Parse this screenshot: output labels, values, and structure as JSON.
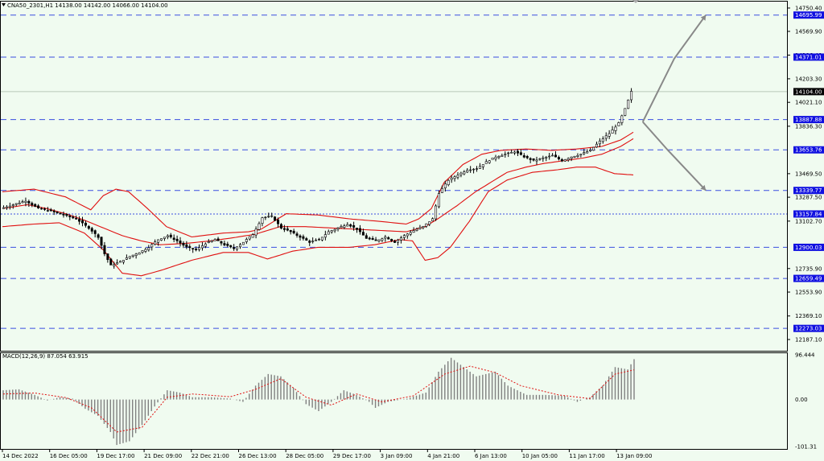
{
  "header": {
    "title": "CNA50_2301,H1  14138.00 14142.00 14066.00 14104.00"
  },
  "colors": {
    "background": "#f0fbf0",
    "level_line": "#3a4ee0",
    "bollinger": "#e01010",
    "ma": "#c00000",
    "candle": "#000000",
    "projection": "#888888",
    "macd_hist": "#808080",
    "macd_signal": "#e01010",
    "label_bg": "#1010e0"
  },
  "chart_data": [
    {
      "type": "candlestick",
      "title": "CNA50_2301,H1",
      "ohlc_header": {
        "open": 14138.0,
        "high": 14142.0,
        "low": 14066.0,
        "close": 14104.0
      },
      "ylim": [
        12100,
        14800
      ],
      "y_ticks": [
        "14750.40",
        "14569.90",
        "14386.40",
        "14203.30",
        "14021.10",
        "13836.30",
        "13469.50",
        "13287.50",
        "13102.70",
        "12735.90",
        "12553.90",
        "12369.10",
        "12187.10"
      ],
      "x_ticks": [
        "14 Dec 2022",
        "16 Dec 05:00",
        "19 Dec 17:00",
        "21 Dec 09:00",
        "22 Dec 21:00",
        "26 Dec 13:00",
        "28 Dec 05:00",
        "29 Dec 17:00",
        "3 Jan 09:00",
        "4 Jan 21:00",
        "6 Jan 13:00",
        "10 Jan 05:00",
        "11 Jan 17:00",
        "13 Jan 09:00"
      ],
      "levels": [
        {
          "value": 14695.99,
          "label": "14695.99",
          "style": "dashed"
        },
        {
          "value": 14371.01,
          "label": "14371.01",
          "style": "dashed"
        },
        {
          "value": 14104.0,
          "label": "14104.00",
          "style": "last-price"
        },
        {
          "value": 13887.88,
          "label": "13887.88",
          "style": "dashed"
        },
        {
          "value": 13653.76,
          "label": "13653.76",
          "style": "dashed"
        },
        {
          "value": 13339.77,
          "label": "13339.77",
          "style": "dashed"
        },
        {
          "value": 13157.84,
          "label": "13157.84",
          "style": "dotted"
        },
        {
          "value": 12900.03,
          "label": "12900.03",
          "style": "dashed"
        },
        {
          "value": 12659.49,
          "label": "12659.49",
          "style": "dashed"
        },
        {
          "value": 12273.03,
          "label": "12273.03",
          "style": "dashed"
        }
      ],
      "price_path": [
        [
          0,
          13200
        ],
        [
          4,
          13230
        ],
        [
          8,
          13260
        ],
        [
          12,
          13200
        ],
        [
          16,
          13180
        ],
        [
          20,
          13150
        ],
        [
          24,
          13120
        ],
        [
          28,
          13050
        ],
        [
          31,
          12980
        ],
        [
          33,
          12850
        ],
        [
          35,
          12760
        ],
        [
          38,
          12790
        ],
        [
          41,
          12830
        ],
        [
          44,
          12860
        ],
        [
          47,
          12900
        ],
        [
          50,
          12960
        ],
        [
          53,
          12990
        ],
        [
          56,
          12950
        ],
        [
          59,
          12900
        ],
        [
          62,
          12880
        ],
        [
          65,
          12930
        ],
        [
          68,
          12960
        ],
        [
          71,
          12920
        ],
        [
          74,
          12890
        ],
        [
          77,
          12940
        ],
        [
          80,
          13000
        ],
        [
          83,
          13130
        ],
        [
          86,
          13140
        ],
        [
          89,
          13050
        ],
        [
          92,
          13020
        ],
        [
          95,
          12980
        ],
        [
          98,
          12940
        ],
        [
          101,
          12960
        ],
        [
          104,
          13020
        ],
        [
          107,
          13050
        ],
        [
          110,
          13080
        ],
        [
          113,
          13040
        ],
        [
          116,
          12970
        ],
        [
          119,
          12950
        ],
        [
          122,
          12980
        ],
        [
          125,
          12940
        ],
        [
          128,
          12990
        ],
        [
          131,
          13030
        ],
        [
          134,
          13060
        ],
        [
          137,
          13120
        ],
        [
          139,
          13320
        ],
        [
          142,
          13420
        ],
        [
          145,
          13460
        ],
        [
          148,
          13500
        ],
        [
          151,
          13510
        ],
        [
          154,
          13560
        ],
        [
          157,
          13600
        ],
        [
          160,
          13620
        ],
        [
          163,
          13640
        ],
        [
          166,
          13600
        ],
        [
          169,
          13570
        ],
        [
          172,
          13590
        ],
        [
          175,
          13610
        ],
        [
          178,
          13570
        ],
        [
          181,
          13600
        ],
        [
          184,
          13620
        ],
        [
          187,
          13650
        ],
        [
          190,
          13720
        ],
        [
          193,
          13780
        ],
        [
          196,
          13860
        ],
        [
          198,
          13970
        ],
        [
          200,
          14104
        ]
      ],
      "bollinger": {
        "upper": [
          [
            0,
            13330
          ],
          [
            10,
            13350
          ],
          [
            20,
            13290
          ],
          [
            28,
            13190
          ],
          [
            32,
            13300
          ],
          [
            36,
            13350
          ],
          [
            40,
            13330
          ],
          [
            46,
            13200
          ],
          [
            52,
            13060
          ],
          [
            60,
            12980
          ],
          [
            70,
            13010
          ],
          [
            78,
            13020
          ],
          [
            82,
            13040
          ],
          [
            90,
            13160
          ],
          [
            100,
            13150
          ],
          [
            110,
            13120
          ],
          [
            120,
            13100
          ],
          [
            128,
            13080
          ],
          [
            132,
            13120
          ],
          [
            136,
            13200
          ],
          [
            140,
            13400
          ],
          [
            146,
            13540
          ],
          [
            152,
            13620
          ],
          [
            158,
            13650
          ],
          [
            166,
            13660
          ],
          [
            174,
            13650
          ],
          [
            182,
            13660
          ],
          [
            190,
            13680
          ],
          [
            196,
            13730
          ],
          [
            200,
            13790
          ]
        ],
        "middle": [
          [
            0,
            13200
          ],
          [
            8,
            13230
          ],
          [
            14,
            13200
          ],
          [
            20,
            13160
          ],
          [
            26,
            13110
          ],
          [
            32,
            13050
          ],
          [
            38,
            12990
          ],
          [
            44,
            12950
          ],
          [
            50,
            12920
          ],
          [
            58,
            12930
          ],
          [
            66,
            12950
          ],
          [
            72,
            12970
          ],
          [
            80,
            13000
          ],
          [
            88,
            13060
          ],
          [
            96,
            13060
          ],
          [
            104,
            13050
          ],
          [
            112,
            13040
          ],
          [
            120,
            13030
          ],
          [
            128,
            13020
          ],
          [
            134,
            13060
          ],
          [
            138,
            13120
          ],
          [
            144,
            13220
          ],
          [
            150,
            13330
          ],
          [
            156,
            13420
          ],
          [
            160,
            13480
          ],
          [
            166,
            13520
          ],
          [
            172,
            13550
          ],
          [
            178,
            13570
          ],
          [
            184,
            13590
          ],
          [
            190,
            13620
          ],
          [
            196,
            13680
          ],
          [
            200,
            13740
          ]
        ],
        "lower": [
          [
            0,
            13060
          ],
          [
            10,
            13080
          ],
          [
            18,
            13090
          ],
          [
            26,
            13010
          ],
          [
            32,
            12880
          ],
          [
            38,
            12700
          ],
          [
            44,
            12680
          ],
          [
            50,
            12720
          ],
          [
            60,
            12800
          ],
          [
            70,
            12860
          ],
          [
            78,
            12860
          ],
          [
            84,
            12810
          ],
          [
            92,
            12870
          ],
          [
            100,
            12900
          ],
          [
            110,
            12900
          ],
          [
            118,
            12920
          ],
          [
            126,
            12960
          ],
          [
            130,
            12950
          ],
          [
            134,
            12800
          ],
          [
            138,
            12820
          ],
          [
            142,
            12900
          ],
          [
            148,
            13100
          ],
          [
            154,
            13330
          ],
          [
            160,
            13420
          ],
          [
            168,
            13480
          ],
          [
            176,
            13500
          ],
          [
            182,
            13520
          ],
          [
            188,
            13520
          ],
          [
            194,
            13470
          ],
          [
            200,
            13460
          ]
        ]
      },
      "projection": {
        "from": [
          203,
          13870
        ],
        "targets": [
          {
            "via": [
              213,
              14360
            ],
            "to": [
              223,
              14695.99
            ]
          },
          {
            "via": [
              211,
              13650
            ],
            "to": [
              223,
              13340
            ]
          }
        ]
      }
    },
    {
      "type": "bar",
      "title": "MACD(12,26,9) 87.054 63.915",
      "ylim": [
        -101.31,
        96.444
      ],
      "y_ticks": [
        "96.444",
        "0.00",
        "-101.31"
      ],
      "histogram": [
        [
          0,
          20
        ],
        [
          5,
          22
        ],
        [
          10,
          10
        ],
        [
          14,
          -2
        ],
        [
          18,
          5
        ],
        [
          22,
          2
        ],
        [
          26,
          -20
        ],
        [
          30,
          -35
        ],
        [
          34,
          -70
        ],
        [
          36,
          -98
        ],
        [
          40,
          -90
        ],
        [
          44,
          -55
        ],
        [
          48,
          -15
        ],
        [
          52,
          20
        ],
        [
          56,
          15
        ],
        [
          60,
          5
        ],
        [
          66,
          5
        ],
        [
          72,
          2
        ],
        [
          76,
          -5
        ],
        [
          80,
          30
        ],
        [
          84,
          55
        ],
        [
          88,
          50
        ],
        [
          92,
          25
        ],
        [
          96,
          -10
        ],
        [
          100,
          -25
        ],
        [
          104,
          -5
        ],
        [
          108,
          20
        ],
        [
          112,
          10
        ],
        [
          116,
          -5
        ],
        [
          118,
          -18
        ],
        [
          122,
          -5
        ],
        [
          128,
          2
        ],
        [
          134,
          15
        ],
        [
          138,
          60
        ],
        [
          142,
          90
        ],
        [
          146,
          70
        ],
        [
          150,
          50
        ],
        [
          156,
          60
        ],
        [
          160,
          30
        ],
        [
          166,
          10
        ],
        [
          172,
          10
        ],
        [
          178,
          8
        ],
        [
          182,
          -5
        ],
        [
          186,
          5
        ],
        [
          190,
          30
        ],
        [
          194,
          70
        ],
        [
          198,
          65
        ],
        [
          200,
          87
        ]
      ],
      "signal": [
        [
          0,
          12
        ],
        [
          10,
          14
        ],
        [
          20,
          4
        ],
        [
          28,
          -18
        ],
        [
          36,
          -70
        ],
        [
          44,
          -60
        ],
        [
          52,
          5
        ],
        [
          60,
          12
        ],
        [
          72,
          6
        ],
        [
          80,
          22
        ],
        [
          88,
          45
        ],
        [
          96,
          5
        ],
        [
          104,
          -12
        ],
        [
          112,
          12
        ],
        [
          120,
          -5
        ],
        [
          130,
          8
        ],
        [
          140,
          55
        ],
        [
          148,
          72
        ],
        [
          156,
          58
        ],
        [
          164,
          30
        ],
        [
          176,
          10
        ],
        [
          186,
          2
        ],
        [
          194,
          55
        ],
        [
          200,
          64
        ]
      ]
    }
  ]
}
